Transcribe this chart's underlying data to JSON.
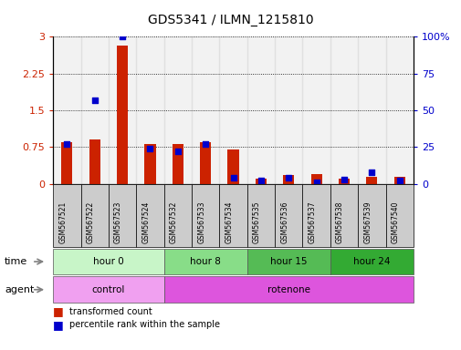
{
  "title": "GDS5341 / ILMN_1215810",
  "samples": [
    "GSM567521",
    "GSM567522",
    "GSM567523",
    "GSM567524",
    "GSM567532",
    "GSM567533",
    "GSM567534",
    "GSM567535",
    "GSM567536",
    "GSM567537",
    "GSM567538",
    "GSM567539",
    "GSM567540"
  ],
  "red_values": [
    0.85,
    0.9,
    2.82,
    0.82,
    0.82,
    0.85,
    0.7,
    0.1,
    0.18,
    0.2,
    0.1,
    0.15,
    0.15
  ],
  "blue_values_pct": [
    27,
    57,
    100,
    24,
    22,
    27,
    4,
    2,
    4,
    1,
    3,
    8,
    2
  ],
  "ylim_left": [
    0,
    3.0
  ],
  "ylim_right": [
    0,
    100
  ],
  "yticks_left": [
    0,
    0.75,
    1.5,
    2.25,
    3.0
  ],
  "ytick_labels_left": [
    "0",
    "0.75",
    "1.5",
    "2.25",
    "3"
  ],
  "yticks_right": [
    0,
    25,
    50,
    75,
    100
  ],
  "ytick_labels_right": [
    "0",
    "25",
    "50",
    "75",
    "100%"
  ],
  "time_groups": [
    {
      "label": "hour 0",
      "start": 0,
      "end": 4,
      "color": "#c8f5c8"
    },
    {
      "label": "hour 8",
      "start": 4,
      "end": 7,
      "color": "#88dd88"
    },
    {
      "label": "hour 15",
      "start": 7,
      "end": 10,
      "color": "#55bb55"
    },
    {
      "label": "hour 24",
      "start": 10,
      "end": 13,
      "color": "#33aa33"
    }
  ],
  "agent_groups": [
    {
      "label": "control",
      "start": 0,
      "end": 4,
      "color": "#f0a0f0"
    },
    {
      "label": "rotenone",
      "start": 4,
      "end": 13,
      "color": "#dd55dd"
    }
  ],
  "red_color": "#cc2200",
  "blue_color": "#0000cc",
  "sample_bg_color": "#cccccc"
}
